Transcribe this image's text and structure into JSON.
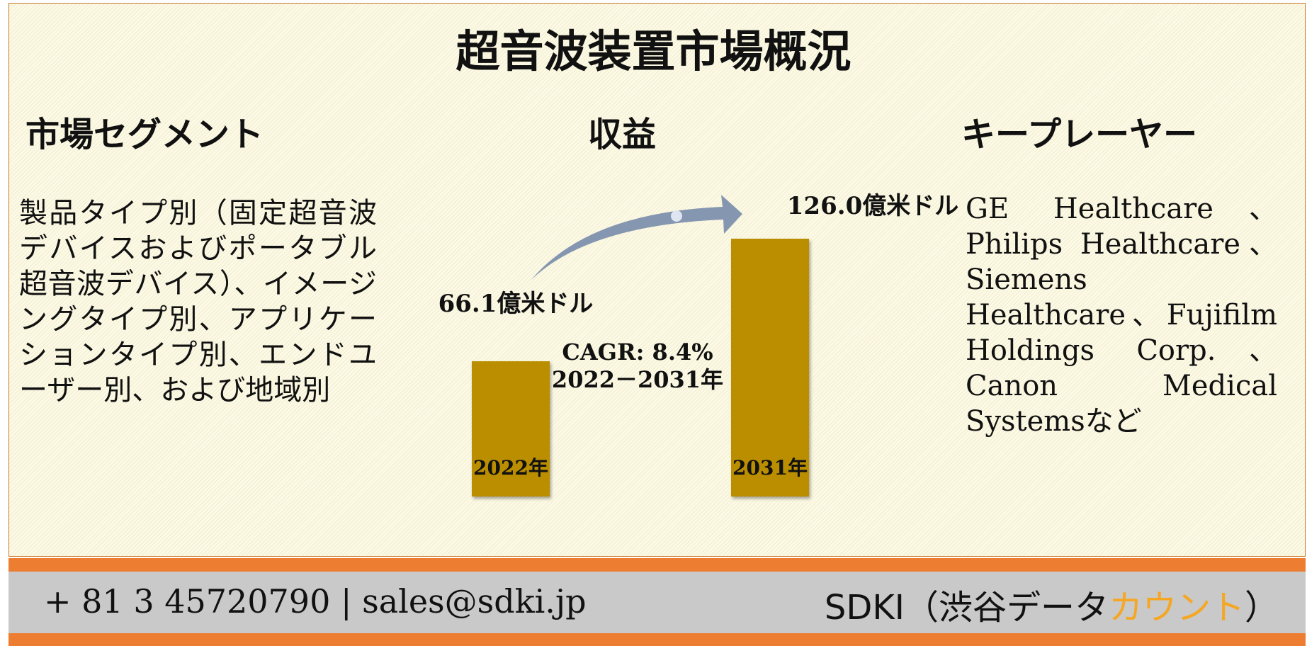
{
  "header": {
    "title": "超音波装置市場概況"
  },
  "segments": {
    "heading": "市場セグメント",
    "text": "製品タイプ別（固定超音波デバイスおよびポータブル超音波デバイス）、イメージングタイプ別、アプリケーションタイプ別、エンドユーザー別、および地域別"
  },
  "chart_data": {
    "type": "bar",
    "title": "収益",
    "categories": [
      "2022年",
      "2031年"
    ],
    "values": [
      66.1,
      126.0
    ],
    "value_labels": [
      "66.1億米ドル",
      "126.0億米ドル"
    ],
    "color": "#bb8e00",
    "annotations": [
      "CAGR: 8.4%",
      "2022－2031年"
    ]
  },
  "players": {
    "heading": "キープレーヤー",
    "text": "GE Healthcare、Philips Healthcare、Siemens Healthcare、Fujifilm Holdings Corp.、Canon Medical Systemsなど"
  },
  "footer": {
    "contact": "+ 81 3 45720790 | sales@sdki.jp",
    "brand": [
      "SDKI（渋谷データ",
      "カウント",
      "）"
    ]
  }
}
